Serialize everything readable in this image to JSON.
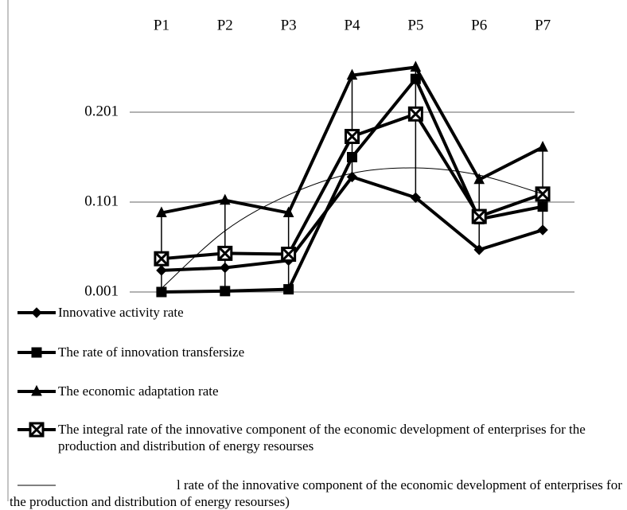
{
  "chart_data": {
    "type": "line",
    "categories": [
      "P1",
      "P2",
      "P3",
      "P4",
      "P5",
      "P6",
      "P7"
    ],
    "ylim": [
      0.001,
      0.301
    ],
    "yticks": [
      0.001,
      0.101,
      0.201
    ],
    "grid": true,
    "legend": "bottom",
    "series": [
      {
        "name": "Innovative activity rate",
        "color": "#000000",
        "marker": "diamond",
        "values": [
          0.025,
          0.028,
          0.036,
          0.129,
          0.106,
          0.048,
          0.07
        ]
      },
      {
        "name": "The rate of innovation transfersize",
        "color": "#000000",
        "marker": "square",
        "values": [
          0.001,
          0.002,
          0.004,
          0.151,
          0.238,
          0.082,
          0.096
        ]
      },
      {
        "name": "The economic adaptation rate",
        "color": "#000000",
        "marker": "triangle",
        "values": [
          0.089,
          0.103,
          0.089,
          0.242,
          0.251,
          0.126,
          0.162
        ]
      },
      {
        "name": "The integral rate of the innovative component of the economic development of enterprises for the production and distribution of energy resourses",
        "color": "#000000",
        "marker": "xsquare",
        "values": [
          0.038,
          0.044,
          0.043,
          0.174,
          0.199,
          0.085,
          0.11
        ]
      },
      {
        "name": "l rate of the innovative component of the economic development of enterprises for the production and distribution of energy resourses)",
        "color": "#000000",
        "marker": "none",
        "thin": true,
        "values": [
          0.005,
          0.069,
          0.109,
          0.133,
          0.139,
          0.131,
          0.11
        ]
      }
    ]
  }
}
